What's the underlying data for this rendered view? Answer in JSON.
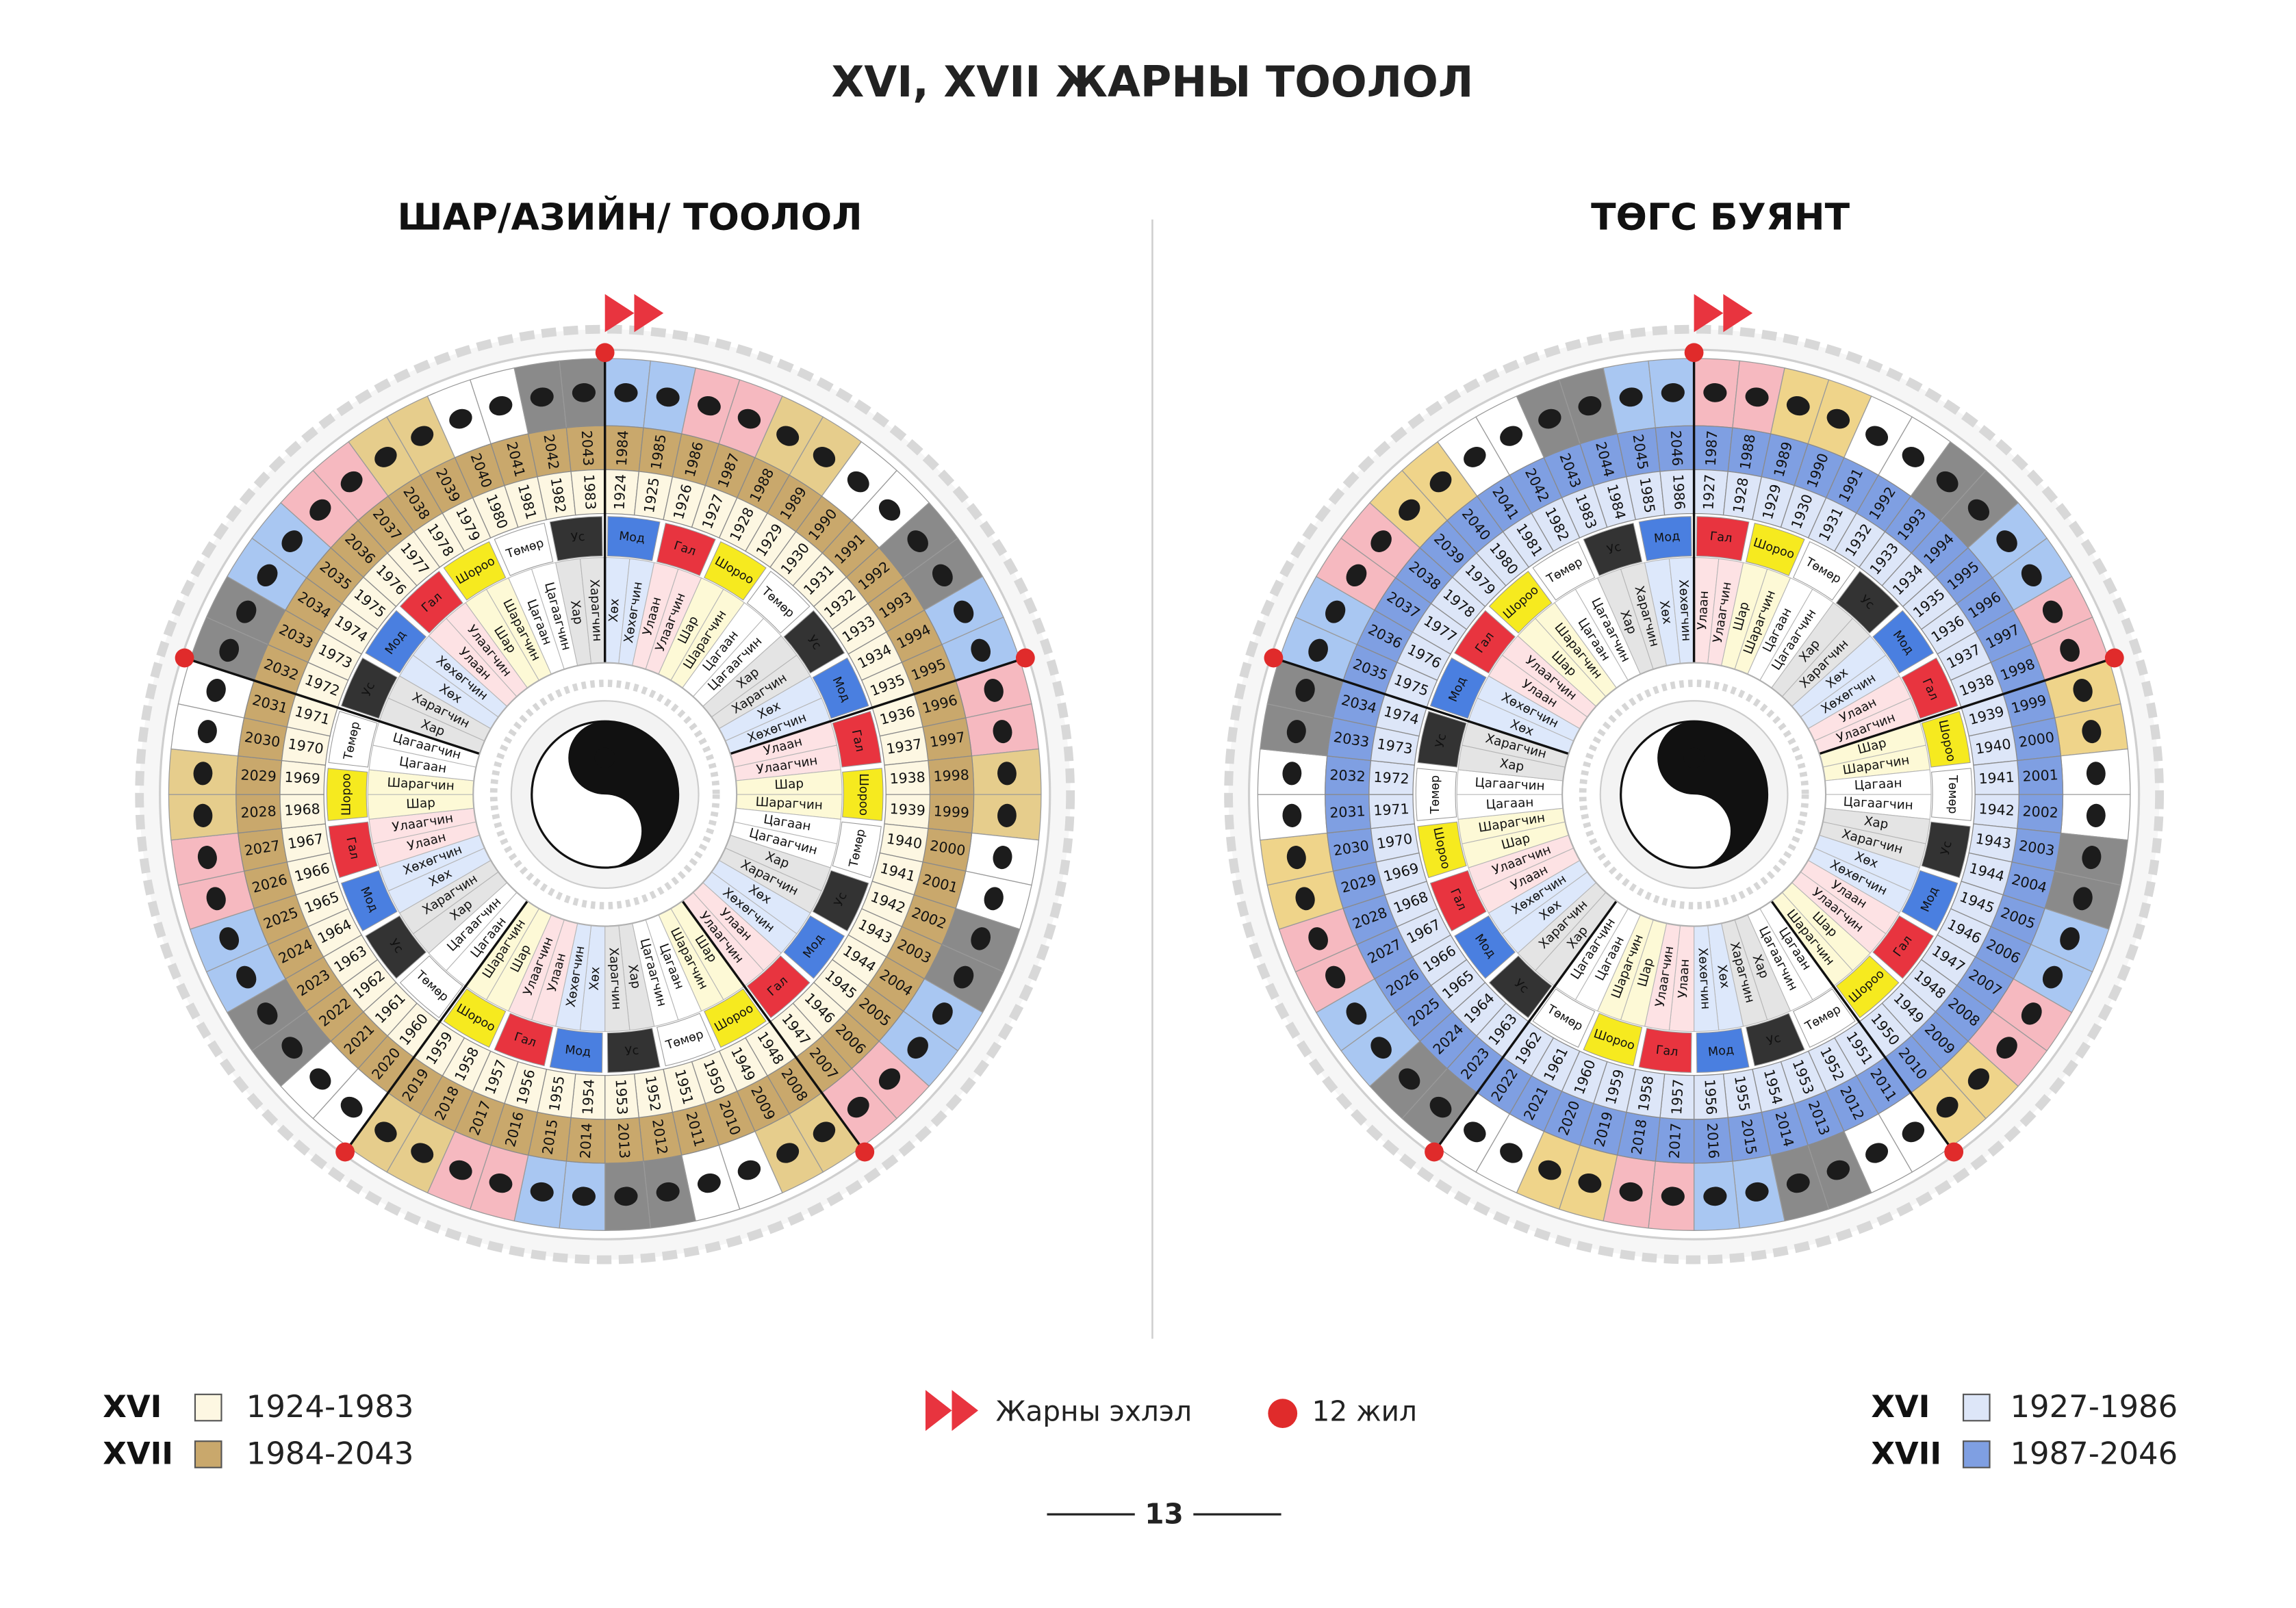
{
  "header": {
    "title": "XVI, XVII ЖАРНЫ ТООЛОЛ"
  },
  "wheels": [
    {
      "title": "ШАР/АЗИЙН/ ТООЛОЛ",
      "title_color": "#e9a635",
      "xvi_color": "#fdf7e2",
      "xvii_color": "#c9a86c",
      "element_colors": [
        "#4a7fe0",
        "#e8343f",
        "#f6ea1f",
        "#ffffff",
        "#333333"
      ],
      "name_colors": [
        "#dde8fb",
        "#fde2e4",
        "#fdf9d6",
        "#ffffff",
        "#e4e4e4"
      ],
      "animal_colors": [
        "#a9c7f2",
        "#f6b9c0",
        "#e6cd8c",
        "#ffffff",
        "#8a8a8a"
      ],
      "xvi_years": [
        1924,
        1925,
        1926,
        1927,
        1928,
        1929,
        1930,
        1931,
        1932,
        1933,
        1934,
        1935,
        1936,
        1937,
        1938,
        1939,
        1940,
        1941,
        1942,
        1943,
        1944,
        1945,
        1946,
        1947,
        1948,
        1949,
        1950,
        1951,
        1952,
        1953,
        1954,
        1955,
        1956,
        1957,
        1958,
        1959,
        1960,
        1961,
        1962,
        1963,
        1964,
        1965,
        1966,
        1967,
        1968,
        1969,
        1970,
        1971,
        1972,
        1973,
        1974,
        1975,
        1976,
        1977,
        1978,
        1979,
        1980,
        1981,
        1982,
        1983
      ],
      "xvii_years": [
        1984,
        1985,
        1986,
        1987,
        1988,
        1989,
        1990,
        1991,
        1992,
        1993,
        1994,
        1995,
        1996,
        1997,
        1998,
        1999,
        2000,
        2001,
        2002,
        2003,
        2004,
        2005,
        2006,
        2007,
        2008,
        2009,
        2010,
        2011,
        2012,
        2013,
        2014,
        2015,
        2016,
        2017,
        2018,
        2019,
        2020,
        2021,
        2022,
        2023,
        2024,
        2025,
        2026,
        2027,
        2028,
        2029,
        2030,
        2031,
        2032,
        2033,
        2034,
        2035,
        2036,
        2037,
        2038,
        2039,
        2040,
        2041,
        2042,
        2043
      ],
      "colors": [
        "Хөх",
        "Хөхөгчин",
        "Улаан",
        "Улаагчин",
        "Шар",
        "Шарагчин",
        "Цагаан",
        "Цагаагчин",
        "Хар",
        "Харагчин",
        "Хөх",
        "Хөхөгчин",
        "Улаан",
        "Улаагчин",
        "Шар",
        "Шарагчин",
        "Цагаан",
        "Цагаагчин",
        "Хар",
        "Харагчин",
        "Хөх",
        "Хөхөгчин",
        "Улаан",
        "Улаагчин",
        "Шар",
        "Шарагчин",
        "Цагаан",
        "Цагаагчин",
        "Хар",
        "Харагчин",
        "Хөх",
        "Хөхөгчин",
        "Улаан",
        "Улаагчин",
        "Шар",
        "Шарагчин",
        "Цагаан",
        "Цагаагчин",
        "Хар",
        "Харагчин",
        "Хөх",
        "Хөхөгчин",
        "Улаан",
        "Улаагчин",
        "Шар",
        "Шарагчин",
        "Цагаан",
        "Цагаагчин",
        "Хар",
        "Харагчин",
        "Хөх",
        "Хөхөгчин",
        "Улаан",
        "Улаагчин",
        "Шар",
        "Шарагчин",
        "Цагаан",
        "Цагаагчин",
        "Хар",
        "Харагчин"
      ],
      "elements": [
        "Мод",
        "Гал",
        "Шороо",
        "Төмөр",
        "Ус",
        "Мод",
        "Гал",
        "Шороо",
        "Төмөр",
        "Ус",
        "Мод",
        "Гал",
        "Шороо",
        "Төмөр",
        "Ус",
        "Мод",
        "Гал",
        "Шороо",
        "Төмөр",
        "Ус",
        "Мод",
        "Гал",
        "Шороо",
        "Төмөр",
        "Ус",
        "Мод",
        "Гал",
        "Шороо",
        "Төмөр",
        "Ус"
      ],
      "legend": [
        {
          "label": "XVI",
          "range": "1924-1983"
        },
        {
          "label": "XVII",
          "range": "1984-2043"
        }
      ]
    },
    {
      "title": "ТӨГС БУЯНТ",
      "title_color": "#2a4fa2",
      "xvi_color": "#dde6f8",
      "xvii_color": "#7f9fe2",
      "element_colors": [
        "#e8343f",
        "#f6ea1f",
        "#ffffff",
        "#333333",
        "#4a7fe0"
      ],
      "name_colors": [
        "#fde2e4",
        "#fdf9d6",
        "#ffffff",
        "#e4e4e4",
        "#dde8fb"
      ],
      "animal_colors": [
        "#f6b9c0",
        "#efd48a",
        "#ffffff",
        "#8a8a8a",
        "#a9c7f2"
      ],
      "xvi_years": [
        1927,
        1928,
        1929,
        1930,
        1931,
        1932,
        1933,
        1934,
        1935,
        1936,
        1937,
        1938,
        1939,
        1940,
        1941,
        1942,
        1943,
        1944,
        1945,
        1946,
        1947,
        1948,
        1949,
        1950,
        1951,
        1952,
        1953,
        1954,
        1955,
        1956,
        1957,
        1958,
        1959,
        1960,
        1961,
        1962,
        1963,
        1964,
        1965,
        1966,
        1967,
        1968,
        1969,
        1970,
        1971,
        1972,
        1973,
        1974,
        1975,
        1976,
        1977,
        1978,
        1979,
        1980,
        1981,
        1982,
        1983,
        1984,
        1985,
        1986
      ],
      "xvii_years": [
        1987,
        1988,
        1989,
        1990,
        1991,
        1992,
        1993,
        1994,
        1995,
        1996,
        1997,
        1998,
        1999,
        2000,
        2001,
        2002,
        2003,
        2004,
        2005,
        2006,
        2007,
        2008,
        2009,
        2010,
        2011,
        2012,
        2013,
        2014,
        2015,
        2016,
        2017,
        2018,
        2019,
        2020,
        2021,
        2022,
        2023,
        2024,
        2025,
        2026,
        2027,
        2028,
        2029,
        2030,
        2031,
        2032,
        2033,
        2034,
        2035,
        2036,
        2037,
        2038,
        2039,
        2040,
        2041,
        2042,
        2043,
        2044,
        2045,
        2046
      ],
      "colors": [
        "Улаан",
        "Улаагчин",
        "Шар",
        "Шарагчин",
        "Цагаан",
        "Цагаагчин",
        "Хар",
        "Харагчин",
        "Хөх",
        "Хөхөгчин",
        "Улаан",
        "Улаагчин",
        "Шар",
        "Шарагчин",
        "Цагаан",
        "Цагаагчин",
        "Хар",
        "Харагчин",
        "Хөх",
        "Хөхөгчин",
        "Улаан",
        "Улаагчин",
        "Шар",
        "Шарагчин",
        "Цагаан",
        "Цагаагчин",
        "Хар",
        "Харагчин",
        "Хөх",
        "Хөхөгчин",
        "Улаан",
        "Улаагчин",
        "Шар",
        "Шарагчин",
        "Цагаан",
        "Цагаагчин",
        "Хар",
        "Харагчин",
        "Хөх",
        "Хөхөгчин",
        "Улаан",
        "Улаагчин",
        "Шар",
        "Шарагчин",
        "Цагаан",
        "Цагаагчин",
        "Хар",
        "Харагчин",
        "Хөх",
        "Хөхөгчин",
        "Улаан",
        "Улаагчин",
        "Шар",
        "Шарагчин",
        "Цагаан",
        "Цагаагчин",
        "Хар",
        "Харагчин",
        "Хөх",
        "Хөхөгчин"
      ],
      "elements": [
        "Гал",
        "Шороо",
        "Төмөр",
        "Ус",
        "Мод",
        "Гал",
        "Шороо",
        "Төмөр",
        "Ус",
        "Мод",
        "Гал",
        "Шороо",
        "Төмөр",
        "Ус",
        "Мод",
        "Гал",
        "Шороо",
        "Төмөр",
        "Ус",
        "Мод",
        "Гал",
        "Шороо",
        "Төмөр",
        "Ус",
        "Мод",
        "Гал",
        "Шороо",
        "Төмөр",
        "Ус",
        "Мод"
      ],
      "legend": [
        {
          "label": "XVI",
          "range": "1927-1986"
        },
        {
          "label": "XVII",
          "range": "1987-2046"
        }
      ]
    }
  ],
  "key": {
    "start": "Жарны эхлэл",
    "twelve": "12 жил"
  },
  "page_number": "13"
}
